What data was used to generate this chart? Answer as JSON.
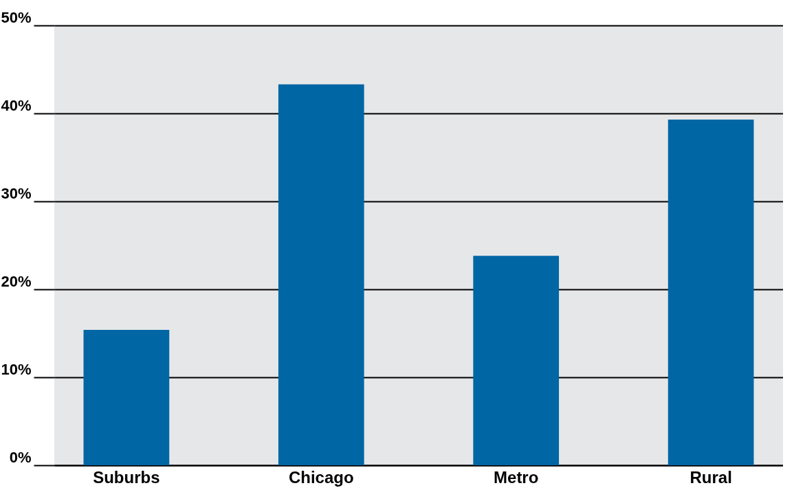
{
  "chart_data": {
    "type": "bar",
    "categories": [
      "Suburbs",
      "Chicago",
      "Metro",
      "Rural"
    ],
    "values": [
      15.4,
      43.3,
      23.8,
      39.3
    ],
    "color": "#0066a4",
    "ylim": [
      0,
      50
    ],
    "yticks": [
      {
        "value": 0,
        "label": "0%"
      },
      {
        "value": 10,
        "label": "10%"
      },
      {
        "value": 20,
        "label": "20%"
      },
      {
        "value": 30,
        "label": "30%"
      },
      {
        "value": 40,
        "label": "40%"
      },
      {
        "value": 50,
        "label": "50%"
      }
    ],
    "grid": "y"
  }
}
